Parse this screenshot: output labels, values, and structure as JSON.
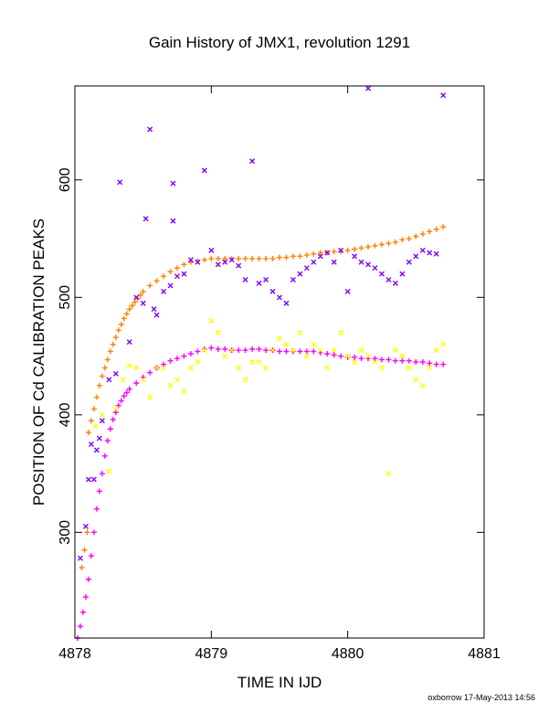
{
  "chart_data": {
    "type": "scatter",
    "title": "Gain History of JMX1, revolution 1291",
    "xlabel": "TIME IN IJD",
    "ylabel": "POSITION OF Cd CALIBRATION PEAKS",
    "xlim": [
      4878,
      4881
    ],
    "ylim": [
      210,
      680
    ],
    "x_ticks": [
      4878,
      4879,
      4880,
      4881
    ],
    "y_ticks": [
      300,
      400,
      500,
      600
    ],
    "grid": false,
    "legend": "none",
    "footer": "oxborrow 17-May-2013 14:56",
    "series": [
      {
        "marker": "plus",
        "color": "#ff8000",
        "points": [
          [
            4878.05,
            270
          ],
          [
            4878.07,
            285
          ],
          [
            4878.09,
            300
          ],
          [
            4878.1,
            385
          ],
          [
            4878.12,
            395
          ],
          [
            4878.14,
            405
          ],
          [
            4878.16,
            415
          ],
          [
            4878.18,
            425
          ],
          [
            4878.2,
            433
          ],
          [
            4878.22,
            440
          ],
          [
            4878.24,
            447
          ],
          [
            4878.26,
            454
          ],
          [
            4878.28,
            460
          ],
          [
            4878.3,
            466
          ],
          [
            4878.32,
            472
          ],
          [
            4878.34,
            477
          ],
          [
            4878.36,
            482
          ],
          [
            4878.38,
            486
          ],
          [
            4878.4,
            490
          ],
          [
            4878.42,
            493
          ],
          [
            4878.44,
            496
          ],
          [
            4878.46,
            499
          ],
          [
            4878.48,
            502
          ],
          [
            4878.5,
            505
          ],
          [
            4878.55,
            510
          ],
          [
            4878.6,
            514
          ],
          [
            4878.65,
            518
          ],
          [
            4878.7,
            522
          ],
          [
            4878.75,
            525
          ],
          [
            4878.8,
            528
          ],
          [
            4878.85,
            530
          ],
          [
            4878.9,
            531
          ],
          [
            4878.95,
            532
          ],
          [
            4879.0,
            533
          ],
          [
            4879.05,
            533
          ],
          [
            4879.1,
            533
          ],
          [
            4879.15,
            533
          ],
          [
            4879.2,
            533
          ],
          [
            4879.25,
            533
          ],
          [
            4879.3,
            533
          ],
          [
            4879.35,
            533
          ],
          [
            4879.4,
            533
          ],
          [
            4879.45,
            533
          ],
          [
            4879.5,
            534
          ],
          [
            4879.55,
            534
          ],
          [
            4879.6,
            535
          ],
          [
            4879.65,
            535
          ],
          [
            4879.7,
            536
          ],
          [
            4879.75,
            537
          ],
          [
            4879.8,
            538
          ],
          [
            4879.85,
            538
          ],
          [
            4879.9,
            539
          ],
          [
            4879.95,
            539
          ],
          [
            4880.0,
            540
          ],
          [
            4880.05,
            541
          ],
          [
            4880.1,
            542
          ],
          [
            4880.15,
            543
          ],
          [
            4880.2,
            544
          ],
          [
            4880.25,
            545
          ],
          [
            4880.3,
            546
          ],
          [
            4880.35,
            547
          ],
          [
            4880.4,
            549
          ],
          [
            4880.45,
            550
          ],
          [
            4880.5,
            552
          ],
          [
            4880.55,
            554
          ],
          [
            4880.6,
            556
          ],
          [
            4880.65,
            558
          ],
          [
            4880.7,
            560
          ]
        ]
      },
      {
        "marker": "plus",
        "color": "#ff00ff",
        "points": [
          [
            4878.02,
            210
          ],
          [
            4878.04,
            220
          ],
          [
            4878.06,
            232
          ],
          [
            4878.08,
            245
          ],
          [
            4878.1,
            260
          ],
          [
            4878.12,
            280
          ],
          [
            4878.14,
            300
          ],
          [
            4878.16,
            320
          ],
          [
            4878.18,
            335
          ],
          [
            4878.2,
            350
          ],
          [
            4878.22,
            365
          ],
          [
            4878.24,
            378
          ],
          [
            4878.26,
            388
          ],
          [
            4878.28,
            396
          ],
          [
            4878.3,
            402
          ],
          [
            4878.32,
            408
          ],
          [
            4878.34,
            412
          ],
          [
            4878.36,
            416
          ],
          [
            4878.38,
            419
          ],
          [
            4878.4,
            422
          ],
          [
            4878.45,
            427
          ],
          [
            4878.5,
            432
          ],
          [
            4878.55,
            436
          ],
          [
            4878.6,
            440
          ],
          [
            4878.65,
            443
          ],
          [
            4878.7,
            446
          ],
          [
            4878.75,
            448
          ],
          [
            4878.8,
            450
          ],
          [
            4878.85,
            452
          ],
          [
            4878.9,
            454
          ],
          [
            4878.95,
            456
          ],
          [
            4879.0,
            457
          ],
          [
            4879.05,
            456
          ],
          [
            4879.1,
            456
          ],
          [
            4879.15,
            455
          ],
          [
            4879.2,
            455
          ],
          [
            4879.25,
            455
          ],
          [
            4879.3,
            456
          ],
          [
            4879.35,
            456
          ],
          [
            4879.4,
            455
          ],
          [
            4879.45,
            455
          ],
          [
            4879.5,
            454
          ],
          [
            4879.55,
            454
          ],
          [
            4879.6,
            454
          ],
          [
            4879.65,
            454
          ],
          [
            4879.7,
            454
          ],
          [
            4879.75,
            454
          ],
          [
            4879.8,
            453
          ],
          [
            4879.85,
            452
          ],
          [
            4879.9,
            451
          ],
          [
            4879.95,
            450
          ],
          [
            4880.0,
            449
          ],
          [
            4880.05,
            449
          ],
          [
            4880.1,
            448
          ],
          [
            4880.15,
            448
          ],
          [
            4880.2,
            448
          ],
          [
            4880.25,
            447
          ],
          [
            4880.3,
            447
          ],
          [
            4880.35,
            446
          ],
          [
            4880.4,
            446
          ],
          [
            4880.45,
            446
          ],
          [
            4880.5,
            445
          ],
          [
            4880.55,
            445
          ],
          [
            4880.6,
            444
          ],
          [
            4880.65,
            443
          ],
          [
            4880.7,
            443
          ]
        ]
      },
      {
        "marker": "x",
        "color": "#8000ff",
        "points": [
          [
            4878.04,
            278
          ],
          [
            4878.08,
            305
          ],
          [
            4878.1,
            345
          ],
          [
            4878.12,
            375
          ],
          [
            4878.14,
            345
          ],
          [
            4878.16,
            370
          ],
          [
            4878.18,
            380
          ],
          [
            4878.2,
            395
          ],
          [
            4878.25,
            430
          ],
          [
            4878.3,
            435
          ],
          [
            4878.33,
            598
          ],
          [
            4878.4,
            462
          ],
          [
            4878.45,
            500
          ],
          [
            4878.5,
            495
          ],
          [
            4878.52,
            567
          ],
          [
            4878.55,
            643
          ],
          [
            4878.58,
            490
          ],
          [
            4878.6,
            485
          ],
          [
            4878.65,
            505
          ],
          [
            4878.7,
            510
          ],
          [
            4878.75,
            518
          ],
          [
            4878.8,
            520
          ],
          [
            4878.85,
            532
          ],
          [
            4878.9,
            530
          ],
          [
            4878.95,
            608
          ],
          [
            4879.0,
            540
          ],
          [
            4879.05,
            528
          ],
          [
            4879.1,
            530
          ],
          [
            4879.15,
            532
          ],
          [
            4879.2,
            527
          ],
          [
            4879.25,
            515
          ],
          [
            4879.3,
            616
          ],
          [
            4879.35,
            512
          ],
          [
            4879.4,
            515
          ],
          [
            4879.45,
            505
          ],
          [
            4879.5,
            500
          ],
          [
            4879.55,
            495
          ],
          [
            4879.6,
            515
          ],
          [
            4879.65,
            520
          ],
          [
            4879.7,
            525
          ],
          [
            4879.75,
            530
          ],
          [
            4879.8,
            535
          ],
          [
            4879.85,
            538
          ],
          [
            4879.9,
            530
          ],
          [
            4879.95,
            540
          ],
          [
            4880.0,
            505
          ],
          [
            4880.05,
            535
          ],
          [
            4880.1,
            530
          ],
          [
            4880.15,
            528
          ],
          [
            4880.2,
            525
          ],
          [
            4880.25,
            520
          ],
          [
            4880.3,
            515
          ],
          [
            4880.35,
            512
          ],
          [
            4880.4,
            520
          ],
          [
            4880.45,
            530
          ],
          [
            4880.5,
            535
          ],
          [
            4880.55,
            540
          ],
          [
            4880.6,
            538
          ],
          [
            4880.65,
            537
          ],
          [
            4880.7,
            672
          ],
          [
            4880.15,
            678
          ],
          [
            4878.72,
            597
          ],
          [
            4878.72,
            565
          ]
        ]
      },
      {
        "marker": "x",
        "color": "#ffff00",
        "points": [
          [
            4878.15,
            390
          ],
          [
            4878.2,
            400
          ],
          [
            4878.25,
            352
          ],
          [
            4878.3,
            405
          ],
          [
            4878.35,
            430
          ],
          [
            4878.4,
            442
          ],
          [
            4878.45,
            440
          ],
          [
            4878.5,
            430
          ],
          [
            4878.55,
            415
          ],
          [
            4878.6,
            440
          ],
          [
            4878.65,
            440
          ],
          [
            4878.7,
            425
          ],
          [
            4878.75,
            430
          ],
          [
            4878.8,
            420
          ],
          [
            4878.85,
            440
          ],
          [
            4878.9,
            445
          ],
          [
            4878.95,
            455
          ],
          [
            4879.0,
            480
          ],
          [
            4879.05,
            470
          ],
          [
            4879.1,
            450
          ],
          [
            4879.15,
            455
          ],
          [
            4879.2,
            440
          ],
          [
            4879.25,
            430
          ],
          [
            4879.3,
            445
          ],
          [
            4879.35,
            445
          ],
          [
            4879.4,
            440
          ],
          [
            4879.45,
            455
          ],
          [
            4879.5,
            465
          ],
          [
            4879.55,
            460
          ],
          [
            4879.6,
            455
          ],
          [
            4879.65,
            470
          ],
          [
            4879.7,
            450
          ],
          [
            4879.75,
            460
          ],
          [
            4879.8,
            455
          ],
          [
            4879.85,
            440
          ],
          [
            4879.9,
            455
          ],
          [
            4879.95,
            470
          ],
          [
            4880.0,
            450
          ],
          [
            4880.05,
            445
          ],
          [
            4880.1,
            455
          ],
          [
            4880.15,
            450
          ],
          [
            4880.2,
            445
          ],
          [
            4880.25,
            440
          ],
          [
            4880.3,
            350
          ],
          [
            4880.35,
            455
          ],
          [
            4880.4,
            450
          ],
          [
            4880.45,
            440
          ],
          [
            4880.5,
            430
          ],
          [
            4880.55,
            425
          ],
          [
            4880.6,
            440
          ],
          [
            4880.65,
            455
          ],
          [
            4880.7,
            460
          ]
        ]
      }
    ]
  }
}
